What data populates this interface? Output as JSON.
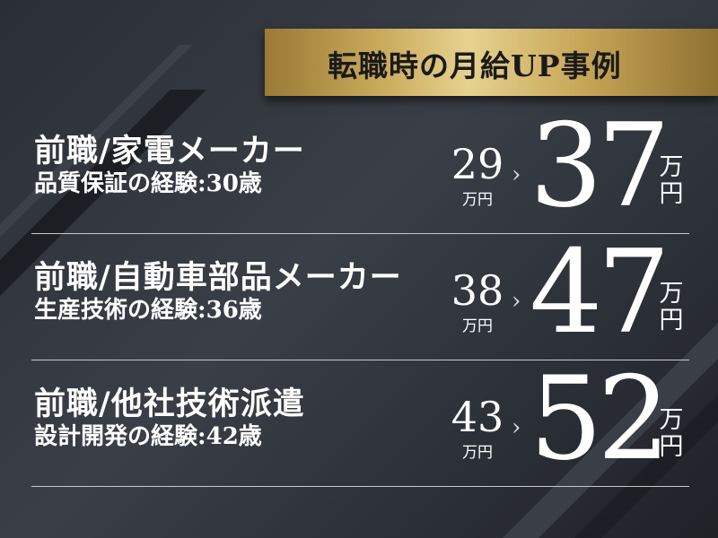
{
  "banner": {
    "title": "転職時の月給UP事例"
  },
  "colors": {
    "background": "#2f333a",
    "gold": "#d4b76e",
    "text": "#ffffff"
  },
  "cases": [
    {
      "job": "前職/家電メーカー",
      "experience": "品質保証の経験:30歳",
      "before": "29",
      "before_unit": "万円",
      "arrow": "›",
      "after": "37",
      "after_unit_1": "万",
      "after_unit_2": "円"
    },
    {
      "job": "前職/自動車部品メーカー",
      "experience": "生産技術の経験:36歳",
      "before": "38",
      "before_unit": "万円",
      "arrow": "›",
      "after": "47",
      "after_unit_1": "万",
      "after_unit_2": "円"
    },
    {
      "job": "前職/他社技術派遣",
      "experience": "設計開発の経験:42歳",
      "before": "43",
      "before_unit": "万円",
      "arrow": "›",
      "after": "52",
      "after_unit_1": "万",
      "after_unit_2": "円"
    }
  ]
}
